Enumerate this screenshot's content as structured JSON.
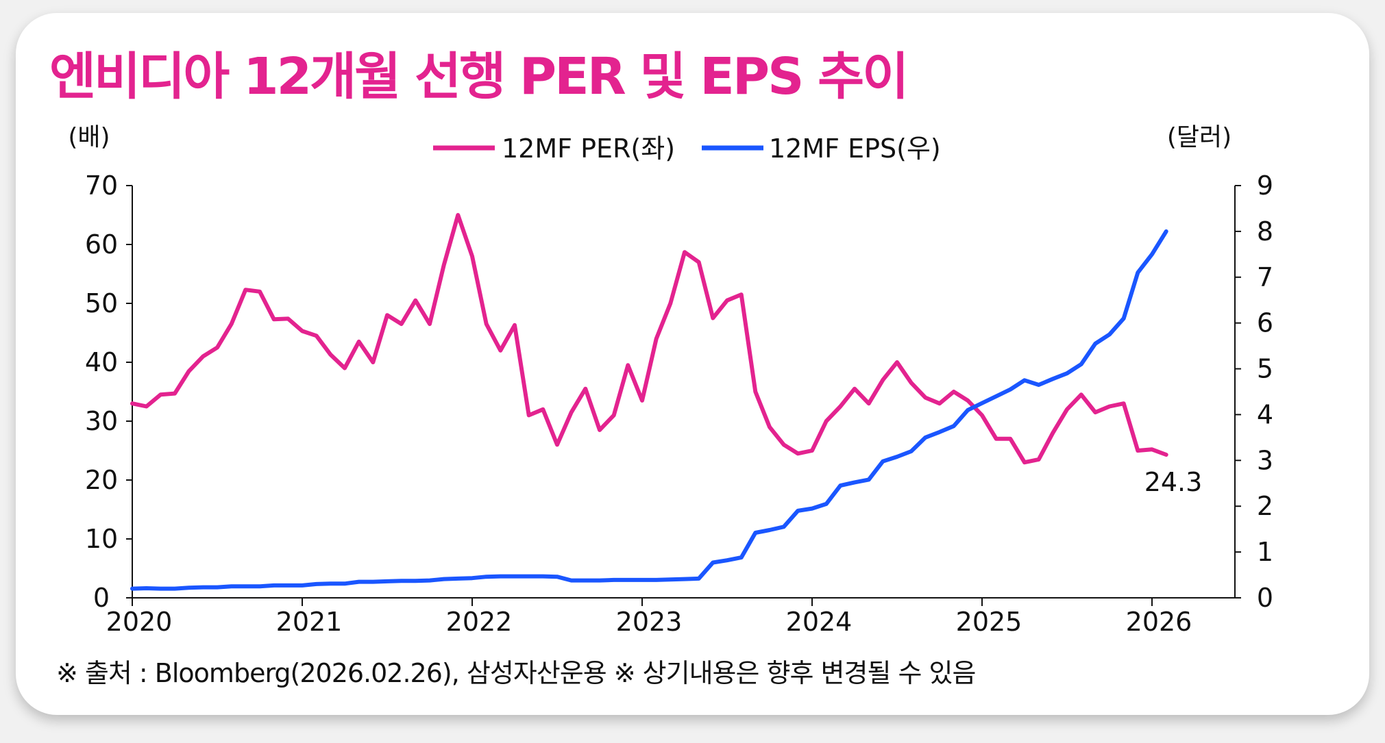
{
  "title": "엔비디아 12개월 선행 PER 및 EPS 추이",
  "footnote": "※ 출처 : Bloomberg(2026.02.26), 삼성자산운용 ※ 상기내용은 향후 변경될 수 있음",
  "colors": {
    "per": "#e3238f",
    "eps": "#1a56ff",
    "title": "#e3238f"
  },
  "chart_data": {
    "type": "line",
    "title": "엔비디아 12개월 선행 PER 및 EPS 추이",
    "y_left_label": "(배)",
    "y_right_label": "(달러)",
    "y_left_range": [
      0,
      70
    ],
    "y_right_range": [
      0,
      9
    ],
    "y_left_ticks": [
      "0",
      "10",
      "20",
      "30",
      "40",
      "50",
      "60",
      "70"
    ],
    "y_right_ticks": [
      "0",
      "1",
      "2",
      "3",
      "4",
      "5",
      "6",
      "7",
      "8",
      "9"
    ],
    "x_ticks": [
      "2020",
      "2021",
      "2022",
      "2023",
      "2024",
      "2025",
      "2026"
    ],
    "x_start": "2020-01",
    "frequency": "monthly",
    "legend_position": "top-center",
    "annotation": "24.3",
    "series": [
      {
        "name": "12MF PER(좌)",
        "axis": "left",
        "values": [
          33.0,
          32.5,
          34.5,
          34.7,
          38.5,
          41,
          42.5,
          46.5,
          52.3,
          52,
          47.3,
          47.4,
          45.3,
          44.5,
          41.3,
          39,
          43.5,
          40,
          48,
          46.5,
          50.5,
          46.5,
          56.5,
          65,
          58,
          46.5,
          42,
          46.3,
          31,
          32,
          26,
          31.5,
          35.5,
          28.5,
          31,
          39.5,
          33.5,
          44,
          50,
          58.7,
          57,
          47.5,
          50.5,
          51.5,
          35,
          29,
          26,
          24.5,
          25,
          30,
          32.5,
          35.5,
          33,
          37,
          40,
          36.5,
          34,
          33,
          35,
          33.5,
          31,
          27,
          27,
          23,
          23.5,
          28,
          32,
          34.5,
          31.5,
          32.5,
          33,
          25,
          25.2,
          24.3
        ]
      },
      {
        "name": "12MF EPS(우)",
        "axis": "right",
        "values": [
          0.2,
          0.21,
          0.2,
          0.2,
          0.22,
          0.23,
          0.23,
          0.25,
          0.25,
          0.25,
          0.27,
          0.27,
          0.27,
          0.3,
          0.31,
          0.31,
          0.35,
          0.35,
          0.36,
          0.37,
          0.37,
          0.38,
          0.41,
          0.42,
          0.43,
          0.46,
          0.47,
          0.47,
          0.47,
          0.47,
          0.46,
          0.38,
          0.38,
          0.38,
          0.39,
          0.39,
          0.39,
          0.39,
          0.4,
          0.41,
          0.42,
          0.77,
          0.82,
          0.88,
          1.42,
          1.48,
          1.55,
          1.9,
          1.95,
          2.05,
          2.45,
          2.52,
          2.58,
          2.98,
          3.08,
          3.2,
          3.5,
          3.62,
          3.75,
          4.1,
          4.25,
          4.4,
          4.55,
          4.75,
          4.65,
          4.78,
          4.9,
          5.1,
          5.55,
          5.75,
          6.1,
          7.1,
          7.5,
          8.0
        ]
      }
    ]
  }
}
